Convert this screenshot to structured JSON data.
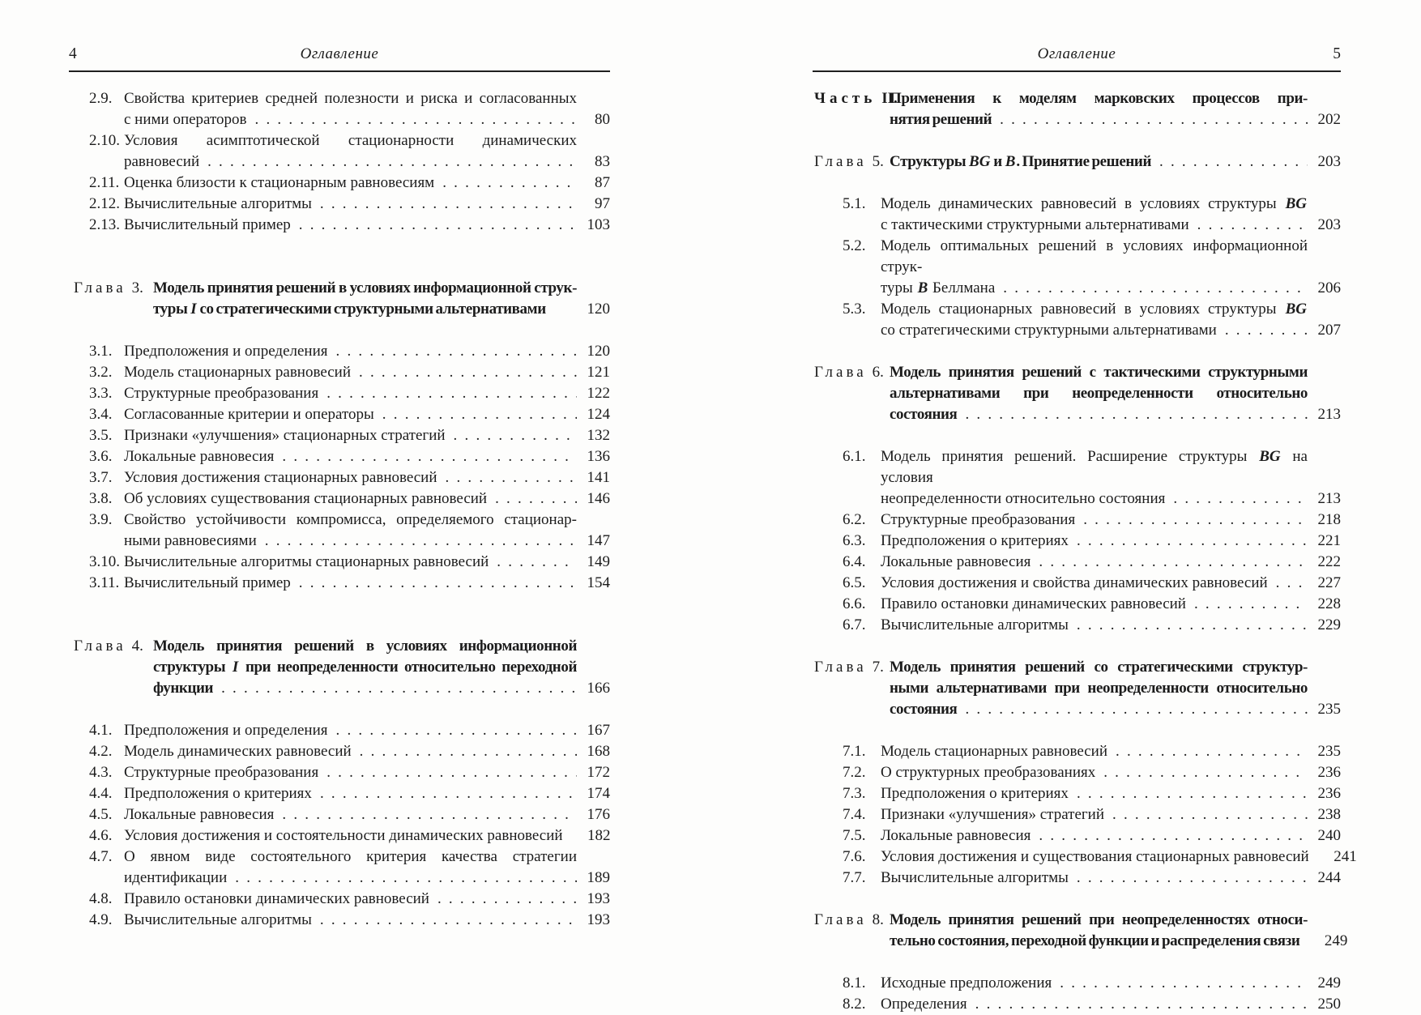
{
  "running_head": "Оглавление",
  "pages": [
    {
      "side": "left",
      "folio_left": "4",
      "folio_right": "",
      "running_head": "Оглавление",
      "entries": [
        {
          "type": "item",
          "num": "2.9.",
          "page": "80",
          "lines": [
            [
              "Свойства критериев средней полезности и риска и согласованных"
            ],
            [
              "с ними операторов"
            ]
          ]
        },
        {
          "type": "item",
          "num": "2.10.",
          "page": "83",
          "lines": [
            [
              "Условия асимптотической стационарности динамических"
            ],
            [
              "равновесий"
            ]
          ]
        },
        {
          "type": "item",
          "num": "2.11.",
          "page": "87",
          "lines": [
            [
              "Оценка близости к стационарным равновесиям"
            ]
          ]
        },
        {
          "type": "item",
          "num": "2.12.",
          "page": "97",
          "lines": [
            [
              "Вычислительные алгоритмы"
            ]
          ]
        },
        {
          "type": "item",
          "num": "2.13.",
          "page": "103",
          "lines": [
            [
              "Вычислительный пример"
            ]
          ]
        },
        {
          "type": "chapter",
          "label": "Глава",
          "num": "3.",
          "page": "120",
          "nodots": true,
          "lines": [
            [
              "Модель принятия решений в условиях информационной струк-"
            ],
            [
              "туры ",
              {
                "m": "I"
              },
              " со стратегическими структурными альтернативами"
            ]
          ]
        },
        {
          "type": "item",
          "num": "3.1.",
          "page": "120",
          "lines": [
            [
              "Предположения и определения"
            ]
          ]
        },
        {
          "type": "item",
          "num": "3.2.",
          "page": "121",
          "lines": [
            [
              "Модель стационарных равновесий"
            ]
          ]
        },
        {
          "type": "item",
          "num": "3.3.",
          "page": "122",
          "lines": [
            [
              "Структурные преобразования"
            ]
          ]
        },
        {
          "type": "item",
          "num": "3.4.",
          "page": "124",
          "lines": [
            [
              "Согласованные критерии и операторы"
            ]
          ]
        },
        {
          "type": "item",
          "num": "3.5.",
          "page": "132",
          "lines": [
            [
              "Признаки «улучшения» стационарных стратегий"
            ]
          ]
        },
        {
          "type": "item",
          "num": "3.6.",
          "page": "136",
          "lines": [
            [
              "Локальные равновесия"
            ]
          ]
        },
        {
          "type": "item",
          "num": "3.7.",
          "page": "141",
          "lines": [
            [
              "Условия достижения стационарных равновесий"
            ]
          ]
        },
        {
          "type": "item",
          "num": "3.8.",
          "page": "146",
          "lines": [
            [
              "Об условиях существования стационарных равновесий"
            ]
          ]
        },
        {
          "type": "item",
          "num": "3.9.",
          "page": "147",
          "lines": [
            [
              "Свойство устойчивости компромисса, определяемого стационар-"
            ],
            [
              "ными равновесиями"
            ]
          ]
        },
        {
          "type": "item",
          "num": "3.10.",
          "page": "149",
          "lines": [
            [
              "Вычислительные алгоритмы стационарных равновесий"
            ]
          ]
        },
        {
          "type": "item",
          "num": "3.11.",
          "page": "154",
          "lines": [
            [
              "Вычислительный пример"
            ]
          ]
        },
        {
          "type": "chapter",
          "label": "Глава",
          "num": "4.",
          "page": "166",
          "lines": [
            [
              "Модель принятия решений в условиях информационной"
            ],
            [
              "структуры ",
              {
                "m": "I"
              },
              " при неопределенности относительно переходной"
            ],
            [
              "функции"
            ]
          ]
        },
        {
          "type": "item",
          "num": "4.1.",
          "page": "167",
          "lines": [
            [
              "Предположения и определения"
            ]
          ]
        },
        {
          "type": "item",
          "num": "4.2.",
          "page": "168",
          "lines": [
            [
              "Модель динамических равновесий"
            ]
          ]
        },
        {
          "type": "item",
          "num": "4.3.",
          "page": "172",
          "lines": [
            [
              "Структурные преобразования"
            ]
          ]
        },
        {
          "type": "item",
          "num": "4.4.",
          "page": "174",
          "lines": [
            [
              "Предположения о критериях"
            ]
          ]
        },
        {
          "type": "item",
          "num": "4.5.",
          "page": "176",
          "lines": [
            [
              "Локальные равновесия"
            ]
          ]
        },
        {
          "type": "item",
          "num": "4.6.",
          "page": "182",
          "nodots": true,
          "lines": [
            [
              "Условия достижения и состоятельности динамических равновесий"
            ]
          ]
        },
        {
          "type": "item",
          "num": "4.7.",
          "page": "189",
          "lines": [
            [
              "О явном виде состоятельного критерия качества стратегии"
            ],
            [
              "идентификации"
            ]
          ]
        },
        {
          "type": "item",
          "num": "4.8.",
          "page": "193",
          "lines": [
            [
              "Правило остановки динамических равновесий"
            ]
          ]
        },
        {
          "type": "item",
          "num": "4.9.",
          "page": "193",
          "lines": [
            [
              "Вычислительные алгоритмы"
            ]
          ]
        }
      ]
    },
    {
      "side": "right",
      "folio_left": "",
      "folio_right": "5",
      "running_head": "Оглавление",
      "entries": [
        {
          "type": "part",
          "label": "Часть",
          "num": "II.",
          "page": "202",
          "lines": [
            [
              "Применения к моделям марковских процессов при-"
            ],
            [
              "нятия решений"
            ]
          ]
        },
        {
          "type": "chapter",
          "label": "Глава",
          "num": "5.",
          "page": "203",
          "lines": [
            [
              "Структуры ",
              {
                "m": "BG"
              },
              " и ",
              {
                "m": "B"
              },
              ". Принятие решений"
            ]
          ]
        },
        {
          "type": "item",
          "num": "5.1.",
          "page": "203",
          "lines": [
            [
              "Модель динамических равновесий в условиях структуры ",
              {
                "m": "BG"
              }
            ],
            [
              "с тактическими структурными альтернативами"
            ]
          ]
        },
        {
          "type": "item",
          "num": "5.2.",
          "page": "206",
          "lines": [
            [
              "Модель оптимальных решений в условиях информационной струк-"
            ],
            [
              "туры ",
              {
                "m": "B"
              },
              " Беллмана"
            ]
          ]
        },
        {
          "type": "item",
          "num": "5.3.",
          "page": "207",
          "lines": [
            [
              "Модель стационарных равновесий в условиях структуры ",
              {
                "m": "BG"
              }
            ],
            [
              "со стратегическими структурными альтернативами"
            ]
          ]
        },
        {
          "type": "chapter",
          "label": "Глава",
          "num": "6.",
          "page": "213",
          "lines": [
            [
              "Модель принятия решений с тактическими структурными"
            ],
            [
              "альтернативами при неопределенности относительно"
            ],
            [
              "состояния"
            ]
          ]
        },
        {
          "type": "item",
          "num": "6.1.",
          "page": "213",
          "lines": [
            [
              "Модель принятия решений. Расширение структуры ",
              {
                "m": "BG"
              },
              " на условия"
            ],
            [
              "неопределенности относительно состояния"
            ]
          ]
        },
        {
          "type": "item",
          "num": "6.2.",
          "page": "218",
          "lines": [
            [
              "Структурные преобразования"
            ]
          ]
        },
        {
          "type": "item",
          "num": "6.3.",
          "page": "221",
          "lines": [
            [
              "Предположения о критериях"
            ]
          ]
        },
        {
          "type": "item",
          "num": "6.4.",
          "page": "222",
          "lines": [
            [
              "Локальные равновесия"
            ]
          ]
        },
        {
          "type": "item",
          "num": "6.5.",
          "page": "227",
          "lines": [
            [
              "Условия достижения и свойства динамических равновесий"
            ]
          ]
        },
        {
          "type": "item",
          "num": "6.6.",
          "page": "228",
          "lines": [
            [
              "Правило остановки динамических равновесий"
            ]
          ]
        },
        {
          "type": "item",
          "num": "6.7.",
          "page": "229",
          "lines": [
            [
              "Вычислительные алгоритмы"
            ]
          ]
        },
        {
          "type": "chapter",
          "label": "Глава",
          "num": "7.",
          "page": "235",
          "lines": [
            [
              "Модель принятия решений со стратегическими структур-"
            ],
            [
              "ными альтернативами при неопределенности относительно"
            ],
            [
              "состояния"
            ]
          ]
        },
        {
          "type": "item",
          "num": "7.1.",
          "page": "235",
          "lines": [
            [
              "Модель стационарных равновесий"
            ]
          ]
        },
        {
          "type": "item",
          "num": "7.2.",
          "page": "236",
          "lines": [
            [
              "О структурных преобразованиях"
            ]
          ]
        },
        {
          "type": "item",
          "num": "7.3.",
          "page": "236",
          "lines": [
            [
              "Предположения о критериях"
            ]
          ]
        },
        {
          "type": "item",
          "num": "7.4.",
          "page": "238",
          "lines": [
            [
              "Признаки «улучшения» стратегий"
            ]
          ]
        },
        {
          "type": "item",
          "num": "7.5.",
          "page": "240",
          "lines": [
            [
              "Локальные равновесия"
            ]
          ]
        },
        {
          "type": "item",
          "num": "7.6.",
          "page": "241",
          "nodots": true,
          "lines": [
            [
              "Условия достижения и существования стационарных равновесий"
            ]
          ]
        },
        {
          "type": "item",
          "num": "7.7.",
          "page": "244",
          "lines": [
            [
              "Вычислительные алгоритмы"
            ]
          ]
        },
        {
          "type": "chapter",
          "label": "Глава",
          "num": "8.",
          "page": "249",
          "nodots": true,
          "lines": [
            [
              "Модель принятия решений при неопределенностях относи-"
            ],
            [
              "тельно состояния, переходной функции и распределения связи"
            ]
          ]
        },
        {
          "type": "item",
          "num": "8.1.",
          "page": "249",
          "lines": [
            [
              "Исходные предположения"
            ]
          ]
        },
        {
          "type": "item",
          "num": "8.2.",
          "page": "250",
          "lines": [
            [
              "Определения"
            ]
          ]
        }
      ]
    }
  ]
}
